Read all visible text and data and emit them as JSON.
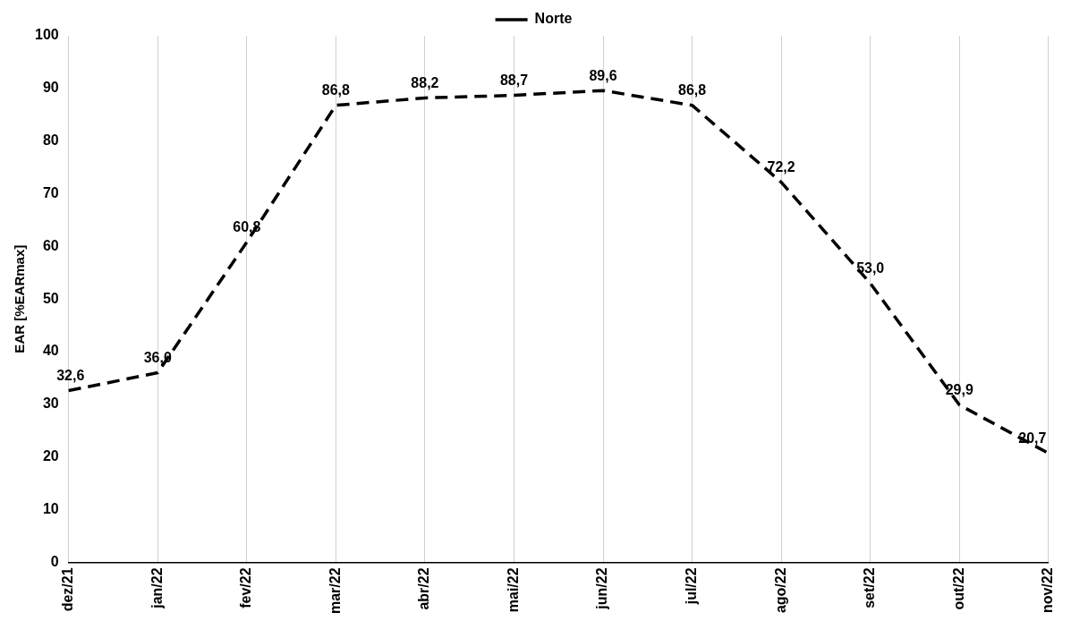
{
  "chart_data": {
    "type": "line",
    "ylabel": "EAR [%EARmax]",
    "categories": [
      "dez/21",
      "jan/22",
      "fev/22",
      "mar/22",
      "abr/22",
      "mai/22",
      "jun/22",
      "jul/22",
      "ago/22",
      "set/22",
      "out/22",
      "nov/22"
    ],
    "series": [
      {
        "name": "Norte",
        "color": "#000000",
        "values": [
          32.6,
          36.0,
          60.8,
          86.8,
          88.2,
          88.7,
          89.6,
          86.8,
          72.2,
          53.0,
          29.9,
          20.7
        ],
        "value_labels": [
          "32,6",
          "36,0",
          "60,8",
          "86,8",
          "88,2",
          "88,7",
          "89,6",
          "86,8",
          "72,2",
          "53,0",
          "29,9",
          "20,7"
        ]
      }
    ],
    "ylim": [
      0,
      100
    ],
    "yticks": [
      0,
      10,
      20,
      30,
      40,
      50,
      60,
      70,
      80,
      90,
      100
    ],
    "grid": "x",
    "legend": "top",
    "marker": "none",
    "line_style": "dashed"
  }
}
